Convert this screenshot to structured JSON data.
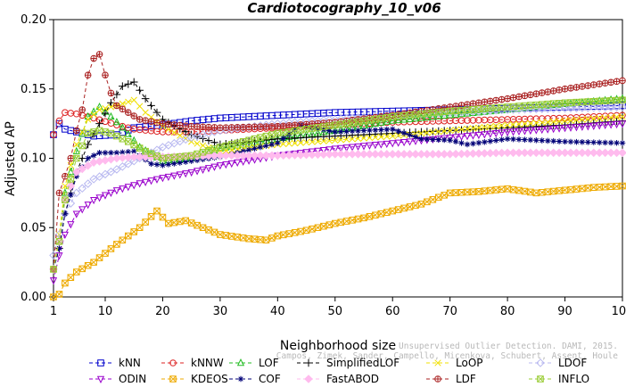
{
  "chart_data": {
    "type": "line",
    "title": "Cardiotocography_10_v06",
    "xlabel": "Neighborhood size",
    "ylabel": "Adjusted AP",
    "xlim": [
      1,
      100
    ],
    "ylim": [
      0,
      0.2
    ],
    "x_ticks": [
      "1",
      "10",
      "20",
      "30",
      "40",
      "50",
      "60",
      "70",
      "80",
      "90",
      "100"
    ],
    "y_ticks": [
      "0.00",
      "0.05",
      "0.10",
      "0.15",
      "0.20"
    ],
    "legend_position": "bottom",
    "grid": false,
    "series": [
      {
        "name": "kNN",
        "color": "#0000cc",
        "marker": "square",
        "dash": "4,3",
        "points": [
          [
            1,
            0.117
          ],
          [
            2,
            0.125
          ],
          [
            3,
            0.121
          ],
          [
            5,
            0.119
          ],
          [
            8,
            0.116
          ],
          [
            12,
            0.117
          ],
          [
            15,
            0.122
          ],
          [
            20,
            0.124
          ],
          [
            25,
            0.127
          ],
          [
            30,
            0.129
          ],
          [
            40,
            0.131
          ],
          [
            50,
            0.133
          ],
          [
            60,
            0.134
          ],
          [
            70,
            0.135
          ],
          [
            80,
            0.136
          ],
          [
            90,
            0.137
          ],
          [
            100,
            0.138
          ]
        ]
      },
      {
        "name": "kNNW",
        "color": "#dd2222",
        "marker": "circle",
        "dash": "4,3",
        "points": [
          [
            1,
            0.117
          ],
          [
            2,
            0.127
          ],
          [
            3,
            0.133
          ],
          [
            5,
            0.132
          ],
          [
            8,
            0.129
          ],
          [
            12,
            0.124
          ],
          [
            15,
            0.121
          ],
          [
            20,
            0.119
          ],
          [
            25,
            0.119
          ],
          [
            30,
            0.12
          ],
          [
            40,
            0.122
          ],
          [
            50,
            0.124
          ],
          [
            60,
            0.126
          ],
          [
            70,
            0.127
          ],
          [
            80,
            0.128
          ],
          [
            90,
            0.129
          ],
          [
            100,
            0.131
          ]
        ]
      },
      {
        "name": "LOF",
        "color": "#22bb22",
        "marker": "triangle-up",
        "dash": "4,3",
        "points": [
          [
            1,
            0.02
          ],
          [
            2,
            0.04
          ],
          [
            3,
            0.075
          ],
          [
            5,
            0.105
          ],
          [
            7,
            0.13
          ],
          [
            9,
            0.137
          ],
          [
            11,
            0.13
          ],
          [
            13,
            0.122
          ],
          [
            16,
            0.108
          ],
          [
            20,
            0.098
          ],
          [
            25,
            0.1
          ],
          [
            30,
            0.107
          ],
          [
            40,
            0.114
          ],
          [
            50,
            0.12
          ],
          [
            60,
            0.127
          ],
          [
            70,
            0.131
          ],
          [
            80,
            0.135
          ],
          [
            90,
            0.139
          ],
          [
            100,
            0.143
          ]
        ]
      },
      {
        "name": "SimplifiedLOF",
        "color": "#000000",
        "marker": "plus",
        "dash": "4,3",
        "points": [
          [
            1,
            0.02
          ],
          [
            2,
            0.035
          ],
          [
            3,
            0.06
          ],
          [
            5,
            0.09
          ],
          [
            7,
            0.11
          ],
          [
            9,
            0.125
          ],
          [
            11,
            0.14
          ],
          [
            13,
            0.152
          ],
          [
            15,
            0.155
          ],
          [
            17,
            0.143
          ],
          [
            20,
            0.128
          ],
          [
            25,
            0.117
          ],
          [
            30,
            0.11
          ],
          [
            40,
            0.114
          ],
          [
            50,
            0.116
          ],
          [
            60,
            0.118
          ],
          [
            70,
            0.12
          ],
          [
            80,
            0.122
          ],
          [
            90,
            0.124
          ],
          [
            100,
            0.127
          ]
        ]
      },
      {
        "name": "LoOP",
        "color": "#f0e000",
        "marker": "cross",
        "dash": "4,3",
        "points": [
          [
            1,
            0.02
          ],
          [
            2,
            0.045
          ],
          [
            3,
            0.08
          ],
          [
            5,
            0.11
          ],
          [
            7,
            0.128
          ],
          [
            9,
            0.135
          ],
          [
            12,
            0.138
          ],
          [
            15,
            0.142
          ],
          [
            17,
            0.133
          ],
          [
            20,
            0.123
          ],
          [
            25,
            0.112
          ],
          [
            30,
            0.105
          ],
          [
            40,
            0.11
          ],
          [
            50,
            0.113
          ],
          [
            60,
            0.116
          ],
          [
            70,
            0.12
          ],
          [
            80,
            0.124
          ],
          [
            90,
            0.127
          ],
          [
            100,
            0.13
          ]
        ]
      },
      {
        "name": "LDOF",
        "color": "#b8b8f0",
        "marker": "diamond",
        "dash": "4,3",
        "points": [
          [
            1,
            0.03
          ],
          [
            2,
            0.045
          ],
          [
            3,
            0.06
          ],
          [
            5,
            0.075
          ],
          [
            8,
            0.085
          ],
          [
            12,
            0.092
          ],
          [
            16,
            0.1
          ],
          [
            20,
            0.108
          ],
          [
            25,
            0.115
          ],
          [
            30,
            0.12
          ],
          [
            40,
            0.125
          ],
          [
            50,
            0.128
          ],
          [
            60,
            0.131
          ],
          [
            70,
            0.133
          ],
          [
            80,
            0.135
          ],
          [
            90,
            0.136
          ],
          [
            100,
            0.137
          ]
        ]
      },
      {
        "name": "ODIN",
        "color": "#9900cc",
        "marker": "triangle-down",
        "dash": "4,3",
        "points": [
          [
            1,
            0.012
          ],
          [
            2,
            0.03
          ],
          [
            3,
            0.045
          ],
          [
            5,
            0.06
          ],
          [
            8,
            0.07
          ],
          [
            12,
            0.077
          ],
          [
            16,
            0.082
          ],
          [
            20,
            0.086
          ],
          [
            25,
            0.09
          ],
          [
            30,
            0.095
          ],
          [
            40,
            0.102
          ],
          [
            50,
            0.107
          ],
          [
            60,
            0.111
          ],
          [
            70,
            0.115
          ],
          [
            80,
            0.119
          ],
          [
            90,
            0.122
          ],
          [
            100,
            0.125
          ]
        ]
      },
      {
        "name": "KDEOS",
        "color": "#eeaa00",
        "marker": "square-x",
        "dash": "4,3",
        "points": [
          [
            1,
            0.0
          ],
          [
            2,
            0.002
          ],
          [
            3,
            0.01
          ],
          [
            5,
            0.018
          ],
          [
            8,
            0.025
          ],
          [
            12,
            0.038
          ],
          [
            16,
            0.05
          ],
          [
            19,
            0.062
          ],
          [
            21,
            0.053
          ],
          [
            24,
            0.055
          ],
          [
            27,
            0.05
          ],
          [
            30,
            0.045
          ],
          [
            35,
            0.042
          ],
          [
            38,
            0.041
          ],
          [
            40,
            0.044
          ],
          [
            45,
            0.048
          ],
          [
            50,
            0.053
          ],
          [
            55,
            0.057
          ],
          [
            60,
            0.062
          ],
          [
            65,
            0.067
          ],
          [
            70,
            0.075
          ],
          [
            75,
            0.076
          ],
          [
            80,
            0.078
          ],
          [
            85,
            0.075
          ],
          [
            90,
            0.077
          ],
          [
            95,
            0.079
          ],
          [
            100,
            0.08
          ]
        ]
      },
      {
        "name": "COF",
        "color": "#000077",
        "marker": "asterisk",
        "dash": "4,3",
        "points": [
          [
            1,
            0.02
          ],
          [
            2,
            0.035
          ],
          [
            3,
            0.06
          ],
          [
            5,
            0.087
          ],
          [
            7,
            0.1
          ],
          [
            9,
            0.104
          ],
          [
            12,
            0.104
          ],
          [
            15,
            0.105
          ],
          [
            18,
            0.096
          ],
          [
            20,
            0.095
          ],
          [
            25,
            0.098
          ],
          [
            30,
            0.101
          ],
          [
            40,
            0.111
          ],
          [
            44,
            0.124
          ],
          [
            50,
            0.119
          ],
          [
            60,
            0.121
          ],
          [
            65,
            0.114
          ],
          [
            70,
            0.113
          ],
          [
            73,
            0.11
          ],
          [
            80,
            0.114
          ],
          [
            90,
            0.112
          ],
          [
            100,
            0.111
          ]
        ]
      },
      {
        "name": "FastABOD",
        "color": "#ffbbee",
        "marker": "diamond-filled",
        "dash": "4,3",
        "points": [
          [
            1,
            0.02
          ],
          [
            2,
            0.04
          ],
          [
            3,
            0.07
          ],
          [
            5,
            0.09
          ],
          [
            8,
            0.097
          ],
          [
            12,
            0.1
          ],
          [
            15,
            0.101
          ],
          [
            20,
            0.101
          ],
          [
            30,
            0.102
          ],
          [
            40,
            0.102
          ],
          [
            50,
            0.103
          ],
          [
            60,
            0.103
          ],
          [
            70,
            0.103
          ],
          [
            80,
            0.104
          ],
          [
            90,
            0.104
          ],
          [
            100,
            0.104
          ]
        ]
      },
      {
        "name": "LDF",
        "color": "#aa2222",
        "marker": "circle-plus",
        "dash": "4,3",
        "points": [
          [
            1,
            0.02
          ],
          [
            2,
            0.075
          ],
          [
            3,
            0.087
          ],
          [
            4,
            0.1
          ],
          [
            5,
            0.12
          ],
          [
            6,
            0.135
          ],
          [
            7,
            0.16
          ],
          [
            8,
            0.172
          ],
          [
            9,
            0.175
          ],
          [
            10,
            0.16
          ],
          [
            11,
            0.147
          ],
          [
            12,
            0.138
          ],
          [
            14,
            0.133
          ],
          [
            16,
            0.128
          ],
          [
            20,
            0.125
          ],
          [
            25,
            0.123
          ],
          [
            30,
            0.122
          ],
          [
            40,
            0.123
          ],
          [
            50,
            0.126
          ],
          [
            60,
            0.131
          ],
          [
            70,
            0.137
          ],
          [
            80,
            0.143
          ],
          [
            90,
            0.15
          ],
          [
            100,
            0.156
          ]
        ]
      },
      {
        "name": "INFLO",
        "color": "#99cc33",
        "marker": "square-x",
        "dash": "4,3",
        "points": [
          [
            1,
            0.02
          ],
          [
            2,
            0.04
          ],
          [
            3,
            0.07
          ],
          [
            5,
            0.1
          ],
          [
            7,
            0.118
          ],
          [
            9,
            0.12
          ],
          [
            11,
            0.118
          ],
          [
            14,
            0.112
          ],
          [
            17,
            0.105
          ],
          [
            20,
            0.1
          ],
          [
            25,
            0.102
          ],
          [
            30,
            0.108
          ],
          [
            40,
            0.118
          ],
          [
            50,
            0.124
          ],
          [
            60,
            0.13
          ],
          [
            70,
            0.134
          ],
          [
            80,
            0.137
          ],
          [
            90,
            0.14
          ],
          [
            100,
            0.142
          ]
        ]
      }
    ],
    "legend_rows": [
      [
        "kNN",
        "kNNW",
        "LOF",
        "SimplifiedLOF",
        "LoOP",
        "LDOF"
      ],
      [
        "ODIN",
        "KDEOS",
        "COF",
        "FastABOD",
        "LDF",
        "INFLO"
      ]
    ]
  },
  "watermark": {
    "line1": "Unsupervised Outlier Detection. DAMI, 2015.",
    "line2": "Campos, Zimek, Sander, Campello, Micenkova, Schubert, Assent, Houle"
  }
}
